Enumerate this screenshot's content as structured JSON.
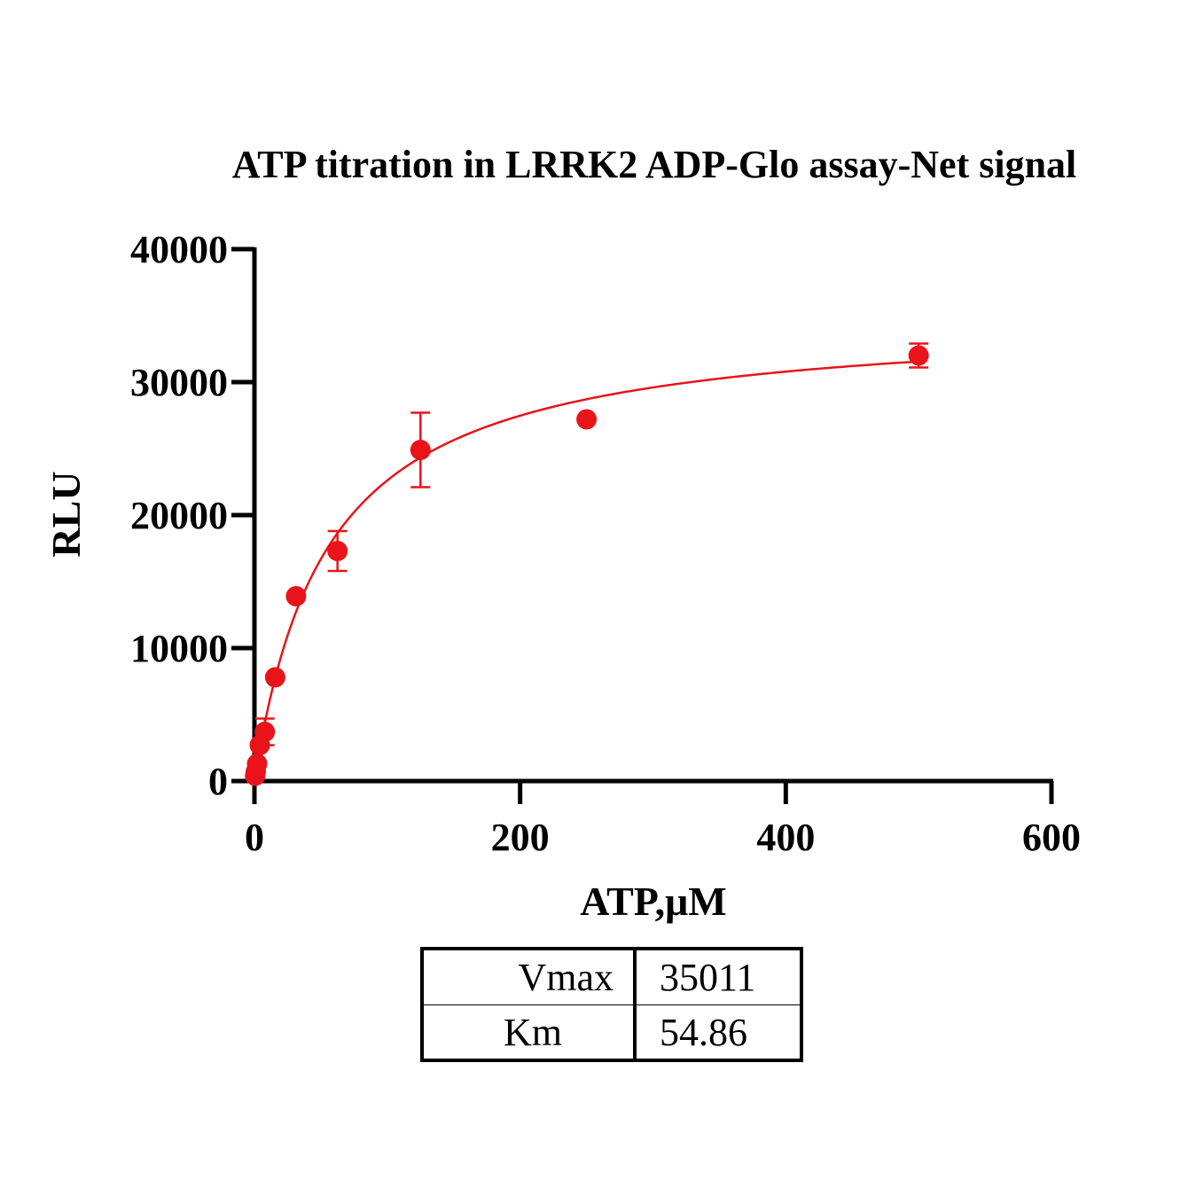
{
  "chart_data": {
    "type": "scatter",
    "title": "ATP titration in LRRK2 ADP-Glo assay-Net signal",
    "xlabel": "ATP,μM",
    "ylabel": "RLU",
    "xlim": [
      0,
      600
    ],
    "ylim": [
      0,
      40000
    ],
    "x_ticks": [
      "0",
      "200",
      "400",
      "600"
    ],
    "y_ticks": [
      "0",
      "10000",
      "20000",
      "30000",
      "40000"
    ],
    "grid": false,
    "color": "#e8141a",
    "points": [
      {
        "x": 0.5,
        "y": 400,
        "err": 0
      },
      {
        "x": 1,
        "y": 700,
        "err": 0
      },
      {
        "x": 2,
        "y": 1300,
        "err": 0
      },
      {
        "x": 4,
        "y": 2700,
        "err": 0
      },
      {
        "x": 7.8,
        "y": 3700,
        "err": 1000
      },
      {
        "x": 15.6,
        "y": 7800,
        "err": 0
      },
      {
        "x": 31.3,
        "y": 13900,
        "err": 0
      },
      {
        "x": 62.5,
        "y": 17300,
        "err": 1500
      },
      {
        "x": 125,
        "y": 24900,
        "err": 2800
      },
      {
        "x": 250,
        "y": 27200,
        "err": 0
      },
      {
        "x": 500,
        "y": 32000,
        "err": 900
      }
    ],
    "fit": {
      "model": "Michaelis-Menten",
      "vmax": 35011,
      "km": 54.86
    }
  },
  "parameters": {
    "rows": [
      {
        "name": "Vmax",
        "value": "35011"
      },
      {
        "name": "Km",
        "value": "54.86"
      }
    ]
  }
}
